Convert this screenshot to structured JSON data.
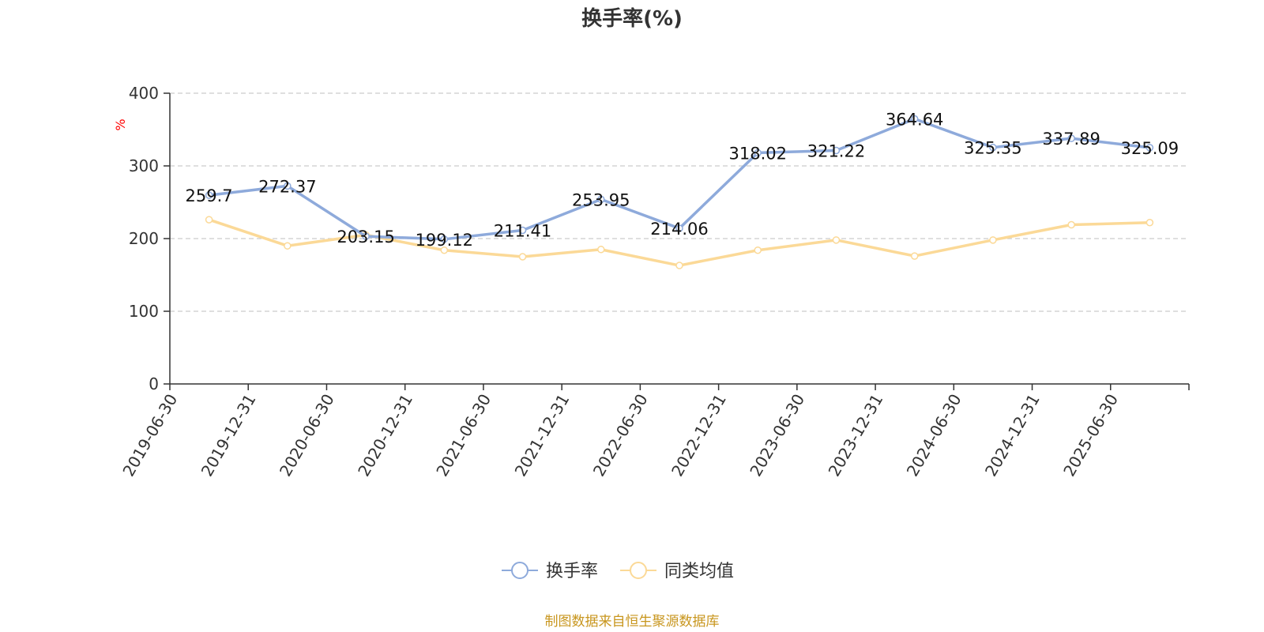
{
  "chart_data": {
    "type": "line",
    "title": "换手率(%)",
    "ylabel": "%",
    "ylim": [
      0,
      400
    ],
    "yticks": [
      0,
      100,
      200,
      300,
      400
    ],
    "grid": true,
    "legend_position": "bottom",
    "categories": [
      "2019-06-30",
      "2019-12-31",
      "2020-06-30",
      "2020-12-31",
      "2021-06-30",
      "2021-12-31",
      "2022-06-30",
      "2022-12-31",
      "2023-06-30",
      "2023-12-31",
      "2024-06-30",
      "2024-12-31",
      "2025-06-30"
    ],
    "series": [
      {
        "name": "换手率",
        "color": "#8eaadb",
        "values": [
          259.7,
          272.37,
          203.15,
          199.12,
          211.41,
          253.95,
          214.06,
          318.02,
          321.22,
          364.64,
          325.35,
          337.89,
          325.09
        ],
        "labels": [
          "259.7",
          "272.37",
          "203.15",
          "199.12",
          "211.41",
          "253.95",
          "214.06",
          "318.02",
          "321.22",
          "364.64",
          "325.35",
          "337.89",
          "325.09"
        ]
      },
      {
        "name": "同类均值",
        "color": "#fbd997",
        "values": [
          226,
          190,
          205,
          184,
          175,
          185,
          163,
          184,
          198,
          176,
          198,
          219,
          222
        ]
      }
    ]
  },
  "colors": {
    "ylabel": "#ff0000",
    "source": "#c8961e",
    "grid": "#cccccc",
    "axis": "#333333"
  },
  "source_note": "制图数据来自恒生聚源数据库"
}
